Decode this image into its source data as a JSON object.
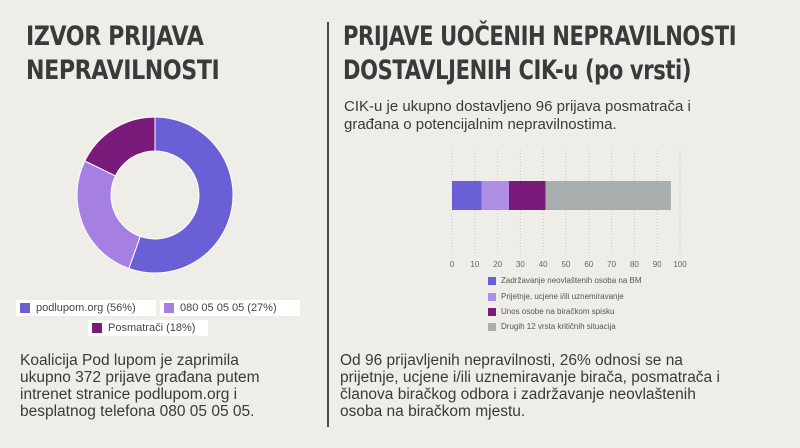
{
  "left": {
    "title_line1": "IZVOR PRIJAVA",
    "title_line2": "NEPRAVILNOSTI",
    "text_line1": "Koalicija Pod lupom je zaprimila",
    "text_line2": "ukupno 372 prijave građana putem",
    "text_line3": "intrenet stranice podlupom.org i",
    "text_line4": "besplatnog telefona 080 05 05 05."
  },
  "right": {
    "title_line1": "PRIJAVE UOČENIH NEPRAVILNOSTI",
    "title_line2": "DOSTAVLJENIH CIK-u (po vrsti)",
    "intro_line1": "CIK-u je ukupno dostavljeno 96 prijava posmatrača i",
    "intro_line2": "građana o potencijalnim nepravilnostima.",
    "text_line1": "Od 96 prijavljenih nepravilnosti, 26% odnosi se na",
    "text_line2": "prijetnje, ucjene i/ili uznemiravanje birača, posmatrača i",
    "text_line3": "članova biračkog odbora i zadržavanje neovlaštenih",
    "text_line4": "osoba na biračkom mjestu."
  },
  "chart_data": [
    {
      "type": "pie",
      "style": "donut",
      "categories": [
        "podlupom.org (56%)",
        "080 05 05 05 (27%)",
        "Posmatrači (18%)"
      ],
      "values": [
        56,
        27,
        18
      ],
      "colors": [
        "#6b5fd6",
        "#a57fe2",
        "#7a1a7a"
      ],
      "legend_placement": "bottom"
    },
    {
      "type": "bar",
      "orientation": "horizontal",
      "stacked": true,
      "categories": [
        ""
      ],
      "series": [
        {
          "name": "Zadržavanje neovlaštenih osoba na BM",
          "values": [
            13
          ],
          "color": "#6b5fd6"
        },
        {
          "name": "Prijetnje, ucjene i/ili uznemiravanje",
          "values": [
            12
          ],
          "color": "#b08ee6"
        },
        {
          "name": "Unos osobe na biračkom spisku",
          "values": [
            16
          ],
          "color": "#7a1a7a"
        },
        {
          "name": "Drugih 12 vrsta kritičnih situacija",
          "values": [
            55
          ],
          "color": "#a9aeae"
        }
      ],
      "xlim": [
        0,
        100
      ],
      "xticks": [
        0,
        10,
        20,
        30,
        40,
        50,
        60,
        70,
        80,
        90,
        100
      ],
      "grid": true,
      "legend_placement": "bottom"
    }
  ]
}
